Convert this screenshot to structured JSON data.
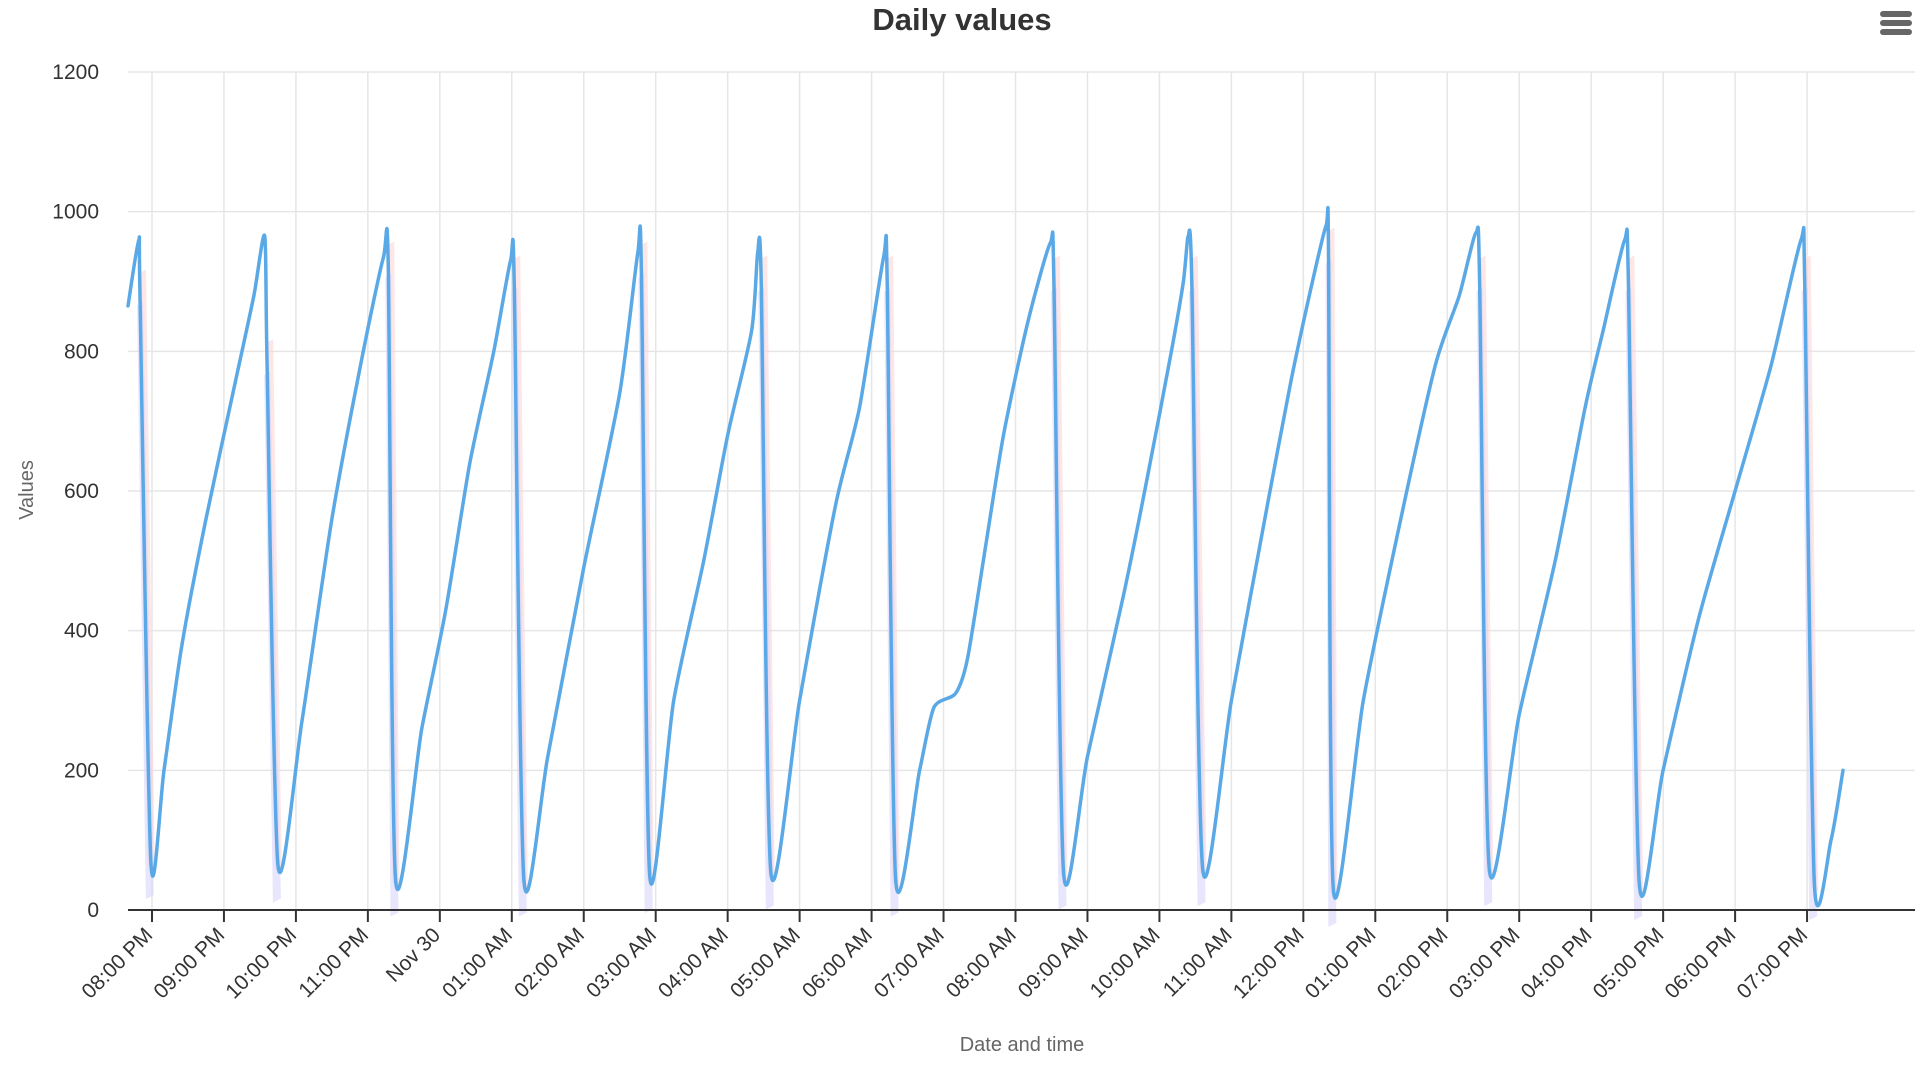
{
  "chart_data": {
    "type": "line",
    "title": "Daily values",
    "xlabel": "Date and time",
    "ylabel": "Values",
    "ylim": [
      0,
      1200
    ],
    "yticks": [
      "0",
      "200",
      "400",
      "600",
      "800",
      "1000",
      "1200"
    ],
    "xlim": [
      "Nov 29 19:40",
      "Nov 30 20:30"
    ],
    "xticks": [
      {
        "time": "Nov 29 20:00",
        "label": "08:00 PM"
      },
      {
        "time": "Nov 29 21:00",
        "label": "09:00 PM"
      },
      {
        "time": "Nov 29 22:00",
        "label": "10:00 PM"
      },
      {
        "time": "Nov 29 23:00",
        "label": "11:00 PM"
      },
      {
        "time": "Nov 30 00:00",
        "label": "Nov 30"
      },
      {
        "time": "Nov 30 01:00",
        "label": "01:00 AM"
      },
      {
        "time": "Nov 30 02:00",
        "label": "02:00 AM"
      },
      {
        "time": "Nov 30 03:00",
        "label": "03:00 AM"
      },
      {
        "time": "Nov 30 04:00",
        "label": "04:00 AM"
      },
      {
        "time": "Nov 30 05:00",
        "label": "05:00 AM"
      },
      {
        "time": "Nov 30 06:00",
        "label": "06:00 AM"
      },
      {
        "time": "Nov 30 07:00",
        "label": "07:00 AM"
      },
      {
        "time": "Nov 30 08:00",
        "label": "08:00 AM"
      },
      {
        "time": "Nov 30 09:00",
        "label": "09:00 AM"
      },
      {
        "time": "Nov 30 10:00",
        "label": "10:00 AM"
      },
      {
        "time": "Nov 30 11:00",
        "label": "11:00 AM"
      },
      {
        "time": "Nov 30 12:00",
        "label": "12:00 PM"
      },
      {
        "time": "Nov 30 13:00",
        "label": "01:00 PM"
      },
      {
        "time": "Nov 30 14:00",
        "label": "02:00 PM"
      },
      {
        "time": "Nov 30 15:00",
        "label": "03:00 PM"
      },
      {
        "time": "Nov 30 16:00",
        "label": "04:00 PM"
      },
      {
        "time": "Nov 30 17:00",
        "label": "05:00 PM"
      },
      {
        "time": "Nov 30 18:00",
        "label": "06:00 PM"
      },
      {
        "time": "Nov 30 19:00",
        "label": "07:00 PM"
      }
    ],
    "grid": true,
    "legend": "none",
    "series": [
      {
        "color": "#5aa9e6",
        "band_upper_color": "#fbd5d5",
        "band_lower_color": "#d9d5fb",
        "points": [
          [
            "Nov 29 19:40",
            865
          ],
          [
            "Nov 29 19:49",
            960
          ],
          [
            "Nov 29 19:50",
            880
          ],
          [
            "Nov 29 19:59",
            70
          ],
          [
            "Nov 29 20:10",
            200
          ],
          [
            "Nov 29 20:25",
            380
          ],
          [
            "Nov 29 20:45",
            560
          ],
          [
            "Nov 29 21:10",
            760
          ],
          [
            "Nov 29 21:25",
            880
          ],
          [
            "Nov 29 21:34",
            965
          ],
          [
            "Nov 29 21:36",
            780
          ],
          [
            "Nov 29 21:45",
            65
          ],
          [
            "Nov 29 22:05",
            270
          ],
          [
            "Nov 29 22:30",
            560
          ],
          [
            "Nov 29 22:55",
            790
          ],
          [
            "Nov 29 23:13",
            935
          ],
          [
            "Nov 29 23:17",
            920
          ],
          [
            "Nov 29 23:23",
            45
          ],
          [
            "Nov 29 23:45",
            260
          ],
          [
            "Nov 30 00:05",
            430
          ],
          [
            "Nov 30 00:25",
            640
          ],
          [
            "Nov 30 00:45",
            800
          ],
          [
            "Nov 30 00:59",
            930
          ],
          [
            "Nov 30 01:02",
            900
          ],
          [
            "Nov 30 01:10",
            45
          ],
          [
            "Nov 30 01:30",
            220
          ],
          [
            "Nov 30 02:00",
            490
          ],
          [
            "Nov 30 02:30",
            740
          ],
          [
            "Nov 30 02:45",
            940
          ],
          [
            "Nov 30 02:48",
            920
          ],
          [
            "Nov 30 02:55",
            50
          ],
          [
            "Nov 30 03:15",
            300
          ],
          [
            "Nov 30 03:40",
            500
          ],
          [
            "Nov 30 04:00",
            680
          ],
          [
            "Nov 30 04:20",
            830
          ],
          [
            "Nov 30 04:25",
            940
          ],
          [
            "Nov 30 04:28",
            900
          ],
          [
            "Nov 30 04:36",
            55
          ],
          [
            "Nov 30 05:00",
            300
          ],
          [
            "Nov 30 05:30",
            580
          ],
          [
            "Nov 30 05:50",
            720
          ],
          [
            "Nov 30 06:10",
            935
          ],
          [
            "Nov 30 06:13",
            900
          ],
          [
            "Nov 30 06:20",
            45
          ],
          [
            "Nov 30 06:40",
            200
          ],
          [
            "Nov 30 06:52",
            290
          ],
          [
            "Nov 30 07:10",
            310
          ],
          [
            "Nov 30 07:20",
            360
          ],
          [
            "Nov 30 07:35",
            520
          ],
          [
            "Nov 30 07:50",
            680
          ],
          [
            "Nov 30 08:10",
            840
          ],
          [
            "Nov 30 08:29",
            955
          ],
          [
            "Nov 30 08:32",
            900
          ],
          [
            "Nov 30 08:40",
            55
          ],
          [
            "Nov 30 09:00",
            220
          ],
          [
            "Nov 30 09:30",
            450
          ],
          [
            "Nov 30 09:50",
            620
          ],
          [
            "Nov 30 10:10",
            800
          ],
          [
            "Nov 30 10:20",
            900
          ],
          [
            "Nov 30 10:24",
            965
          ],
          [
            "Nov 30 10:27",
            900
          ],
          [
            "Nov 30 10:36",
            60
          ],
          [
            "Nov 30 11:00",
            300
          ],
          [
            "Nov 30 11:30",
            580
          ],
          [
            "Nov 30 11:50",
            760
          ],
          [
            "Nov 30 12:05",
            880
          ],
          [
            "Nov 30 12:19",
            980
          ],
          [
            "Nov 30 12:21",
            940
          ],
          [
            "Nov 30 12:25",
            30
          ],
          [
            "Nov 30 12:50",
            300
          ],
          [
            "Nov 30 13:20",
            550
          ],
          [
            "Nov 30 13:50",
            780
          ],
          [
            "Nov 30 14:10",
            880
          ],
          [
            "Nov 30 14:24",
            970
          ],
          [
            "Nov 30 14:27",
            900
          ],
          [
            "Nov 30 14:35",
            60
          ],
          [
            "Nov 30 15:00",
            280
          ],
          [
            "Nov 30 15:30",
            500
          ],
          [
            "Nov 30 15:55",
            720
          ],
          [
            "Nov 30 16:10",
            830
          ],
          [
            "Nov 30 16:28",
            960
          ],
          [
            "Nov 30 16:31",
            900
          ],
          [
            "Nov 30 16:40",
            40
          ],
          [
            "Nov 30 17:00",
            200
          ],
          [
            "Nov 30 17:30",
            420
          ],
          [
            "Nov 30 18:00",
            600
          ],
          [
            "Nov 30 18:30",
            780
          ],
          [
            "Nov 30 18:55",
            960
          ],
          [
            "Nov 30 18:58",
            900
          ],
          [
            "Nov 30 19:06",
            40
          ],
          [
            "Nov 30 19:20",
            100
          ],
          [
            "Nov 30 19:30",
            200
          ]
        ]
      }
    ]
  },
  "menu": {
    "icon": "hamburger-menu-icon"
  }
}
